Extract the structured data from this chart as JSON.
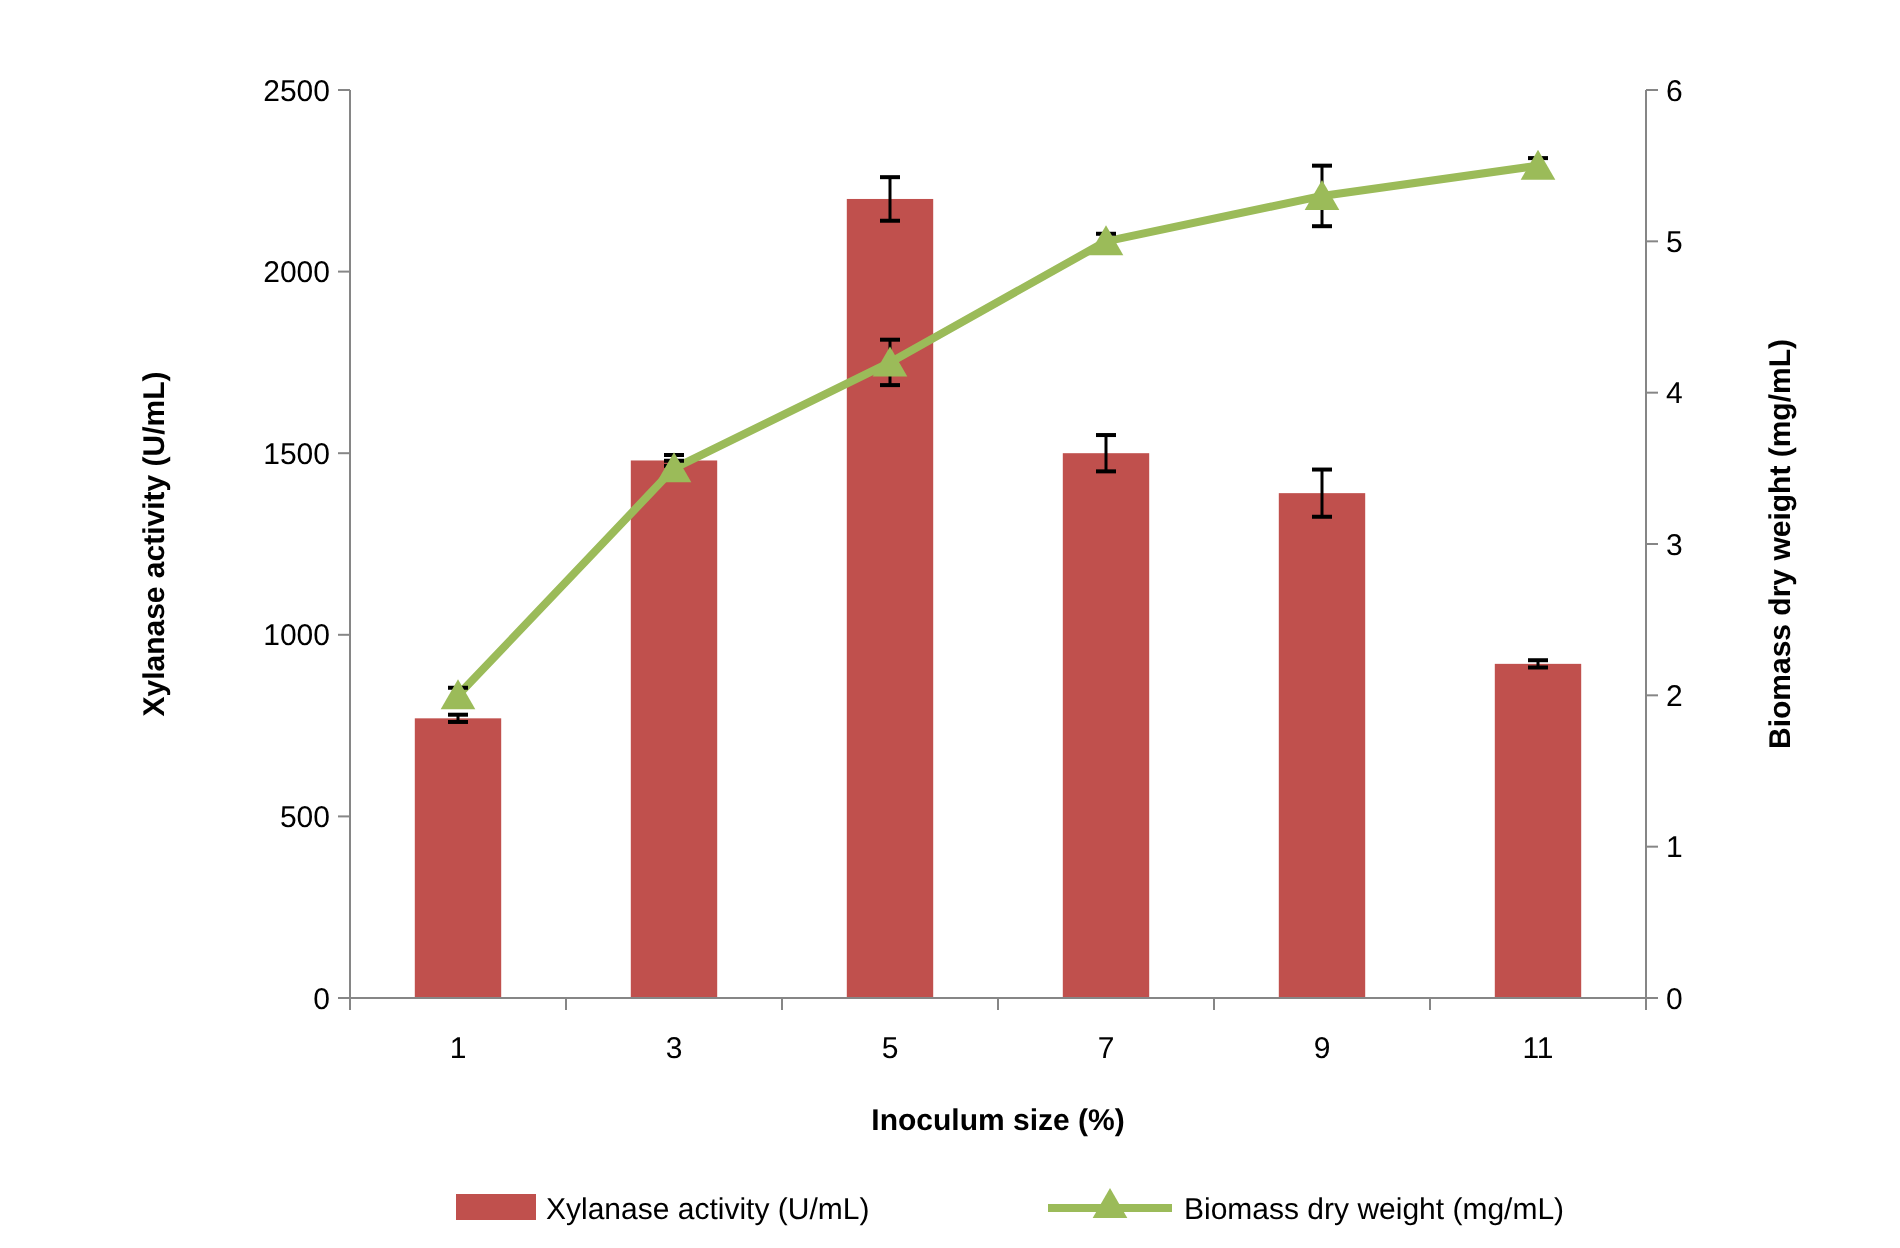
{
  "chart_data": {
    "type": "bar",
    "xlabel": "Inoculum size (%)",
    "ylabel": "Xylanase activity (U/mL)",
    "y2label": "Biomass dry weight (mg/mL)",
    "categories": [
      "1",
      "3",
      "5",
      "7",
      "9",
      "11"
    ],
    "series": [
      {
        "name": "Xylanase activity (U/mL)",
        "color": "#c0504d",
        "values": [
          770,
          1480,
          2200,
          1500,
          1390,
          920
        ],
        "errors": [
          10,
          15,
          60,
          50,
          65,
          10
        ]
      },
      {
        "name": "Biomass dry weight (mg/mL)",
        "type": "line",
        "axis": "y2",
        "color": "#9bbb59",
        "marker": "triangle",
        "values": [
          2.0,
          3.5,
          4.2,
          5.0,
          5.3,
          5.5
        ],
        "errors": [
          0.05,
          0.05,
          0.15,
          0.05,
          0.2,
          0.05
        ]
      }
    ],
    "ylim": [
      0,
      2500
    ],
    "yticks": [
      0,
      500,
      1000,
      1500,
      2000,
      2500
    ],
    "y2lim": [
      0,
      6
    ],
    "y2ticks": [
      0,
      1,
      2,
      3,
      4,
      5,
      6
    ],
    "grid": false,
    "legend": "bottom"
  }
}
